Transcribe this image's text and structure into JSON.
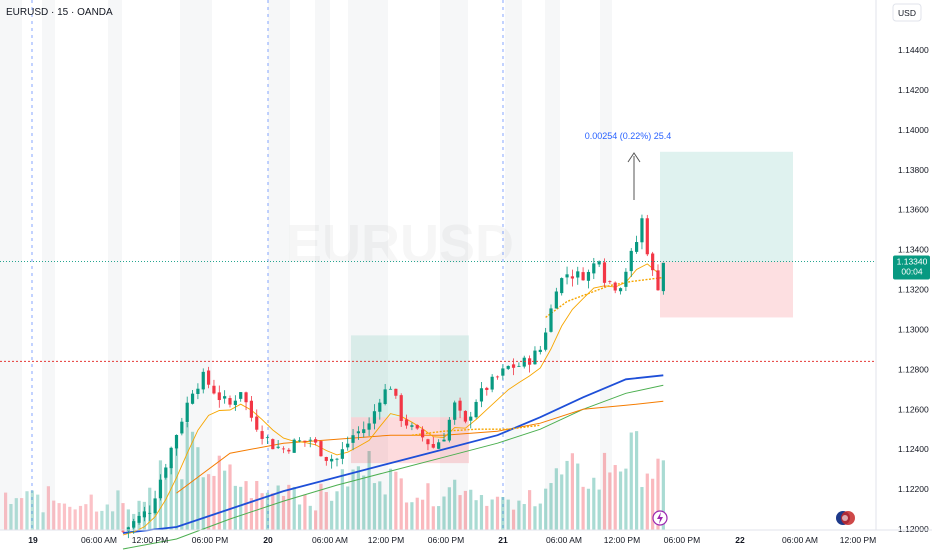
{
  "header": {
    "symbol": "EURUSD · 15 · OANDA",
    "currency_button": "USD"
  },
  "watermark": "EURUSD",
  "price_badge": {
    "price": "1.13340",
    "countdown": "00:04",
    "color": "#089981"
  },
  "measure": {
    "label": "0.00254 (0.22%) 25.4"
  },
  "colors": {
    "up": "#089981",
    "down": "#f23645",
    "ema_fast": "#f7a600",
    "ema_slow": "#f57c00",
    "ma200": "#1e4fd8",
    "ma_green": "#4caf50",
    "vwap": "#f7a600",
    "resistance": "#e53935",
    "session_line": "#2962ff",
    "measure_text": "#2962ff"
  },
  "chart_data": {
    "type": "candlestick",
    "symbol": "EURUSD",
    "interval": "15",
    "y_ticks": [
      "1.14400",
      "1.14200",
      "1.14000",
      "1.13800",
      "1.13600",
      "1.13400",
      "1.13200",
      "1.13000",
      "1.12800",
      "1.12600",
      "1.12400",
      "1.12200",
      "1.12000"
    ],
    "ylim": [
      1.119,
      1.146
    ],
    "x_ticks": [
      "19",
      "06:00 AM",
      "12:00 PM",
      "06:00 PM",
      "20",
      "06:00 AM",
      "12:00 PM",
      "06:00 PM",
      "21",
      "06:00 AM",
      "12:00 PM",
      "06:00 PM",
      "22",
      "06:00 AM",
      "12:00 PM"
    ],
    "last_price": 1.1334,
    "resistance_level": 1.1284,
    "close_path": [
      [
        0,
        1.1199
      ],
      [
        5,
        1.121
      ],
      [
        10,
        1.1248
      ],
      [
        13,
        1.127
      ],
      [
        15,
        1.1276
      ],
      [
        18,
        1.1266
      ],
      [
        20,
        1.1262
      ],
      [
        22,
        1.127
      ],
      [
        24,
        1.1256
      ],
      [
        26,
        1.1248
      ],
      [
        28,
        1.1242
      ],
      [
        30,
        1.124
      ],
      [
        32,
        1.1243
      ],
      [
        35,
        1.1245
      ],
      [
        38,
        1.1236
      ],
      [
        40,
        1.1235
      ],
      [
        43,
        1.1247
      ],
      [
        46,
        1.1252
      ],
      [
        48,
        1.1266
      ],
      [
        50,
        1.1272
      ],
      [
        52,
        1.1256
      ],
      [
        54,
        1.125
      ],
      [
        56,
        1.1246
      ],
      [
        58,
        1.1241
      ],
      [
        60,
        1.1247
      ],
      [
        62,
        1.1262
      ],
      [
        64,
        1.1252
      ],
      [
        66,
        1.1265
      ],
      [
        68,
        1.1271
      ],
      [
        70,
        1.1276
      ],
      [
        72,
        1.1281
      ],
      [
        74,
        1.1282
      ],
      [
        76,
        1.1285
      ],
      [
        78,
        1.129
      ],
      [
        80,
        1.131
      ],
      [
        81,
        1.1322
      ],
      [
        83,
        1.1328
      ],
      [
        85,
        1.1327
      ],
      [
        87,
        1.1328
      ],
      [
        89,
        1.1337
      ],
      [
        90,
        1.1326
      ],
      [
        92,
        1.1322
      ],
      [
        93,
        1.1323
      ],
      [
        95,
        1.1337
      ],
      [
        96,
        1.1344
      ],
      [
        97,
        1.1355
      ],
      [
        98,
        1.134
      ],
      [
        99,
        1.1328
      ],
      [
        100,
        1.1322
      ],
      [
        101,
        1.1334
      ]
    ],
    "volume_profile": [
      0.2,
      0.25,
      0.35,
      0.5,
      0.6,
      0.7,
      0.55,
      0.5,
      0.45,
      0.4,
      0.35,
      0.3,
      0.35,
      0.4,
      0.3,
      0.25,
      0.3,
      0.4,
      0.45,
      0.5,
      0.55,
      0.45,
      0.4,
      0.35,
      0.3,
      0.3,
      0.35,
      0.4,
      0.35,
      0.3,
      0.25,
      0.2,
      0.2,
      0.3,
      0.4,
      0.45,
      0.5,
      0.45,
      0.4,
      0.55,
      0.6,
      0.65,
      0.55,
      0.5,
      0.45
    ],
    "ma200_path": [
      [
        0,
        1.1198
      ],
      [
        10,
        1.1201
      ],
      [
        20,
        1.121
      ],
      [
        30,
        1.1219
      ],
      [
        40,
        1.1226
      ],
      [
        50,
        1.1233
      ],
      [
        60,
        1.124
      ],
      [
        70,
        1.1247
      ],
      [
        78,
        1.1256
      ],
      [
        86,
        1.1266
      ],
      [
        94,
        1.1275
      ],
      [
        101,
        1.1277
      ]
    ],
    "ma_green_path": [
      [
        0,
        1.119
      ],
      [
        10,
        1.1195
      ],
      [
        20,
        1.1205
      ],
      [
        30,
        1.1214
      ],
      [
        40,
        1.1222
      ],
      [
        50,
        1.1229
      ],
      [
        60,
        1.1236
      ],
      [
        70,
        1.1243
      ],
      [
        78,
        1.125
      ],
      [
        86,
        1.126
      ],
      [
        94,
        1.1268
      ],
      [
        101,
        1.1272
      ]
    ],
    "ma_slow_path": [
      [
        10,
        1.1218
      ],
      [
        20,
        1.1238
      ],
      [
        30,
        1.1243
      ],
      [
        40,
        1.1245
      ],
      [
        50,
        1.1247
      ],
      [
        60,
        1.1247
      ],
      [
        70,
        1.1249
      ],
      [
        78,
        1.1253
      ],
      [
        86,
        1.126
      ],
      [
        94,
        1.1262
      ],
      [
        101,
        1.1264
      ]
    ],
    "vwap_day3": [
      [
        79,
        1.1306
      ],
      [
        83,
        1.1314
      ],
      [
        87,
        1.1318
      ],
      [
        91,
        1.1322
      ],
      [
        95,
        1.1324
      ],
      [
        101,
        1.1326
      ]
    ],
    "vwap_day2": [
      [
        54,
        1.1247
      ],
      [
        60,
        1.1249
      ],
      [
        66,
        1.125
      ],
      [
        72,
        1.125
      ],
      [
        78,
        1.1252
      ]
    ]
  }
}
